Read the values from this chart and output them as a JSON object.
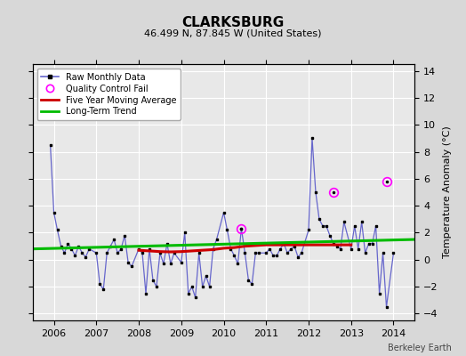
{
  "title": "CLARKSBURG",
  "subtitle": "46.499 N, 87.845 W (United States)",
  "ylabel_right": "Temperature Anomaly (°C)",
  "watermark": "Berkeley Earth",
  "ylim": [
    -4.5,
    14.5
  ],
  "yticks": [
    -4,
    -2,
    0,
    2,
    4,
    6,
    8,
    10,
    12,
    14
  ],
  "xlim": [
    2005.5,
    2014.5
  ],
  "xticks": [
    2006,
    2007,
    2008,
    2009,
    2010,
    2011,
    2012,
    2013,
    2014
  ],
  "bg_color": "#d8d8d8",
  "plot_bg_color": "#e8e8e8",
  "grid_color": "#ffffff",
  "monthly_data": {
    "times": [
      2005.917,
      2006.0,
      2006.083,
      2006.167,
      2006.25,
      2006.333,
      2006.417,
      2006.5,
      2006.583,
      2006.667,
      2006.75,
      2006.833,
      2007.0,
      2007.083,
      2007.167,
      2007.25,
      2007.333,
      2007.417,
      2007.5,
      2007.583,
      2007.667,
      2007.75,
      2007.833,
      2008.0,
      2008.083,
      2008.167,
      2008.25,
      2008.333,
      2008.417,
      2008.5,
      2008.583,
      2008.667,
      2008.75,
      2008.833,
      2009.0,
      2009.083,
      2009.167,
      2009.25,
      2009.333,
      2009.417,
      2009.5,
      2009.583,
      2009.667,
      2009.75,
      2009.833,
      2010.0,
      2010.083,
      2010.167,
      2010.25,
      2010.333,
      2010.417,
      2010.5,
      2010.583,
      2010.667,
      2010.75,
      2010.833,
      2011.0,
      2011.083,
      2011.167,
      2011.25,
      2011.333,
      2011.417,
      2011.5,
      2011.583,
      2011.667,
      2011.75,
      2011.833,
      2012.0,
      2012.083,
      2012.167,
      2012.25,
      2012.333,
      2012.417,
      2012.5,
      2012.583,
      2012.667,
      2012.75,
      2012.833,
      2013.0,
      2013.083,
      2013.167,
      2013.25,
      2013.333,
      2013.417,
      2013.5,
      2013.583,
      2013.667,
      2013.75,
      2013.833,
      2014.0
    ],
    "values": [
      8.5,
      3.5,
      2.2,
      1.0,
      0.5,
      1.2,
      0.8,
      0.3,
      1.0,
      0.5,
      0.2,
      0.8,
      0.5,
      -1.8,
      -2.2,
      0.5,
      1.0,
      1.5,
      0.5,
      0.8,
      1.8,
      -0.2,
      -0.5,
      0.8,
      0.5,
      -2.5,
      0.8,
      -1.5,
      -2.0,
      0.5,
      -0.3,
      1.2,
      -0.3,
      0.5,
      -0.2,
      2.0,
      -2.5,
      -2.0,
      -2.8,
      0.5,
      -2.0,
      -1.2,
      -2.0,
      0.8,
      1.5,
      3.5,
      2.2,
      0.8,
      0.3,
      -0.3,
      2.3,
      0.5,
      -1.5,
      -1.8,
      0.5,
      0.5,
      0.5,
      0.8,
      0.3,
      0.3,
      0.8,
      1.2,
      0.5,
      0.8,
      1.0,
      0.2,
      0.5,
      2.2,
      9.0,
      5.0,
      3.0,
      2.5,
      2.5,
      1.8,
      1.2,
      1.0,
      0.8,
      2.8,
      0.8,
      2.5,
      0.8,
      2.8,
      0.5,
      1.2,
      1.2,
      2.5,
      -2.5,
      0.5,
      -3.5,
      0.5
    ]
  },
  "qc_fail_times": [
    2010.417,
    2012.583,
    2013.833
  ],
  "qc_fail_values": [
    2.3,
    5.0,
    5.8
  ],
  "moving_avg_times": [
    2008.0,
    2008.25,
    2008.5,
    2008.75,
    2009.0,
    2009.25,
    2009.5,
    2009.75,
    2010.0,
    2010.25,
    2010.5,
    2010.75,
    2011.0,
    2011.25,
    2011.5,
    2011.75,
    2012.0,
    2012.25,
    2012.5,
    2012.75,
    2013.0
  ],
  "moving_avg_values": [
    0.7,
    0.65,
    0.6,
    0.58,
    0.6,
    0.65,
    0.7,
    0.75,
    0.85,
    0.9,
    1.0,
    1.05,
    1.1,
    1.1,
    1.1,
    1.1,
    1.1,
    1.1,
    1.1,
    1.1,
    1.1
  ],
  "trend_times": [
    2005.5,
    2014.5
  ],
  "trend_values": [
    0.8,
    1.5
  ],
  "line_color": "#6666cc",
  "marker_color": "#000000",
  "qc_color": "#ff00ff",
  "moving_avg_color": "#cc0000",
  "trend_color": "#00bb00"
}
